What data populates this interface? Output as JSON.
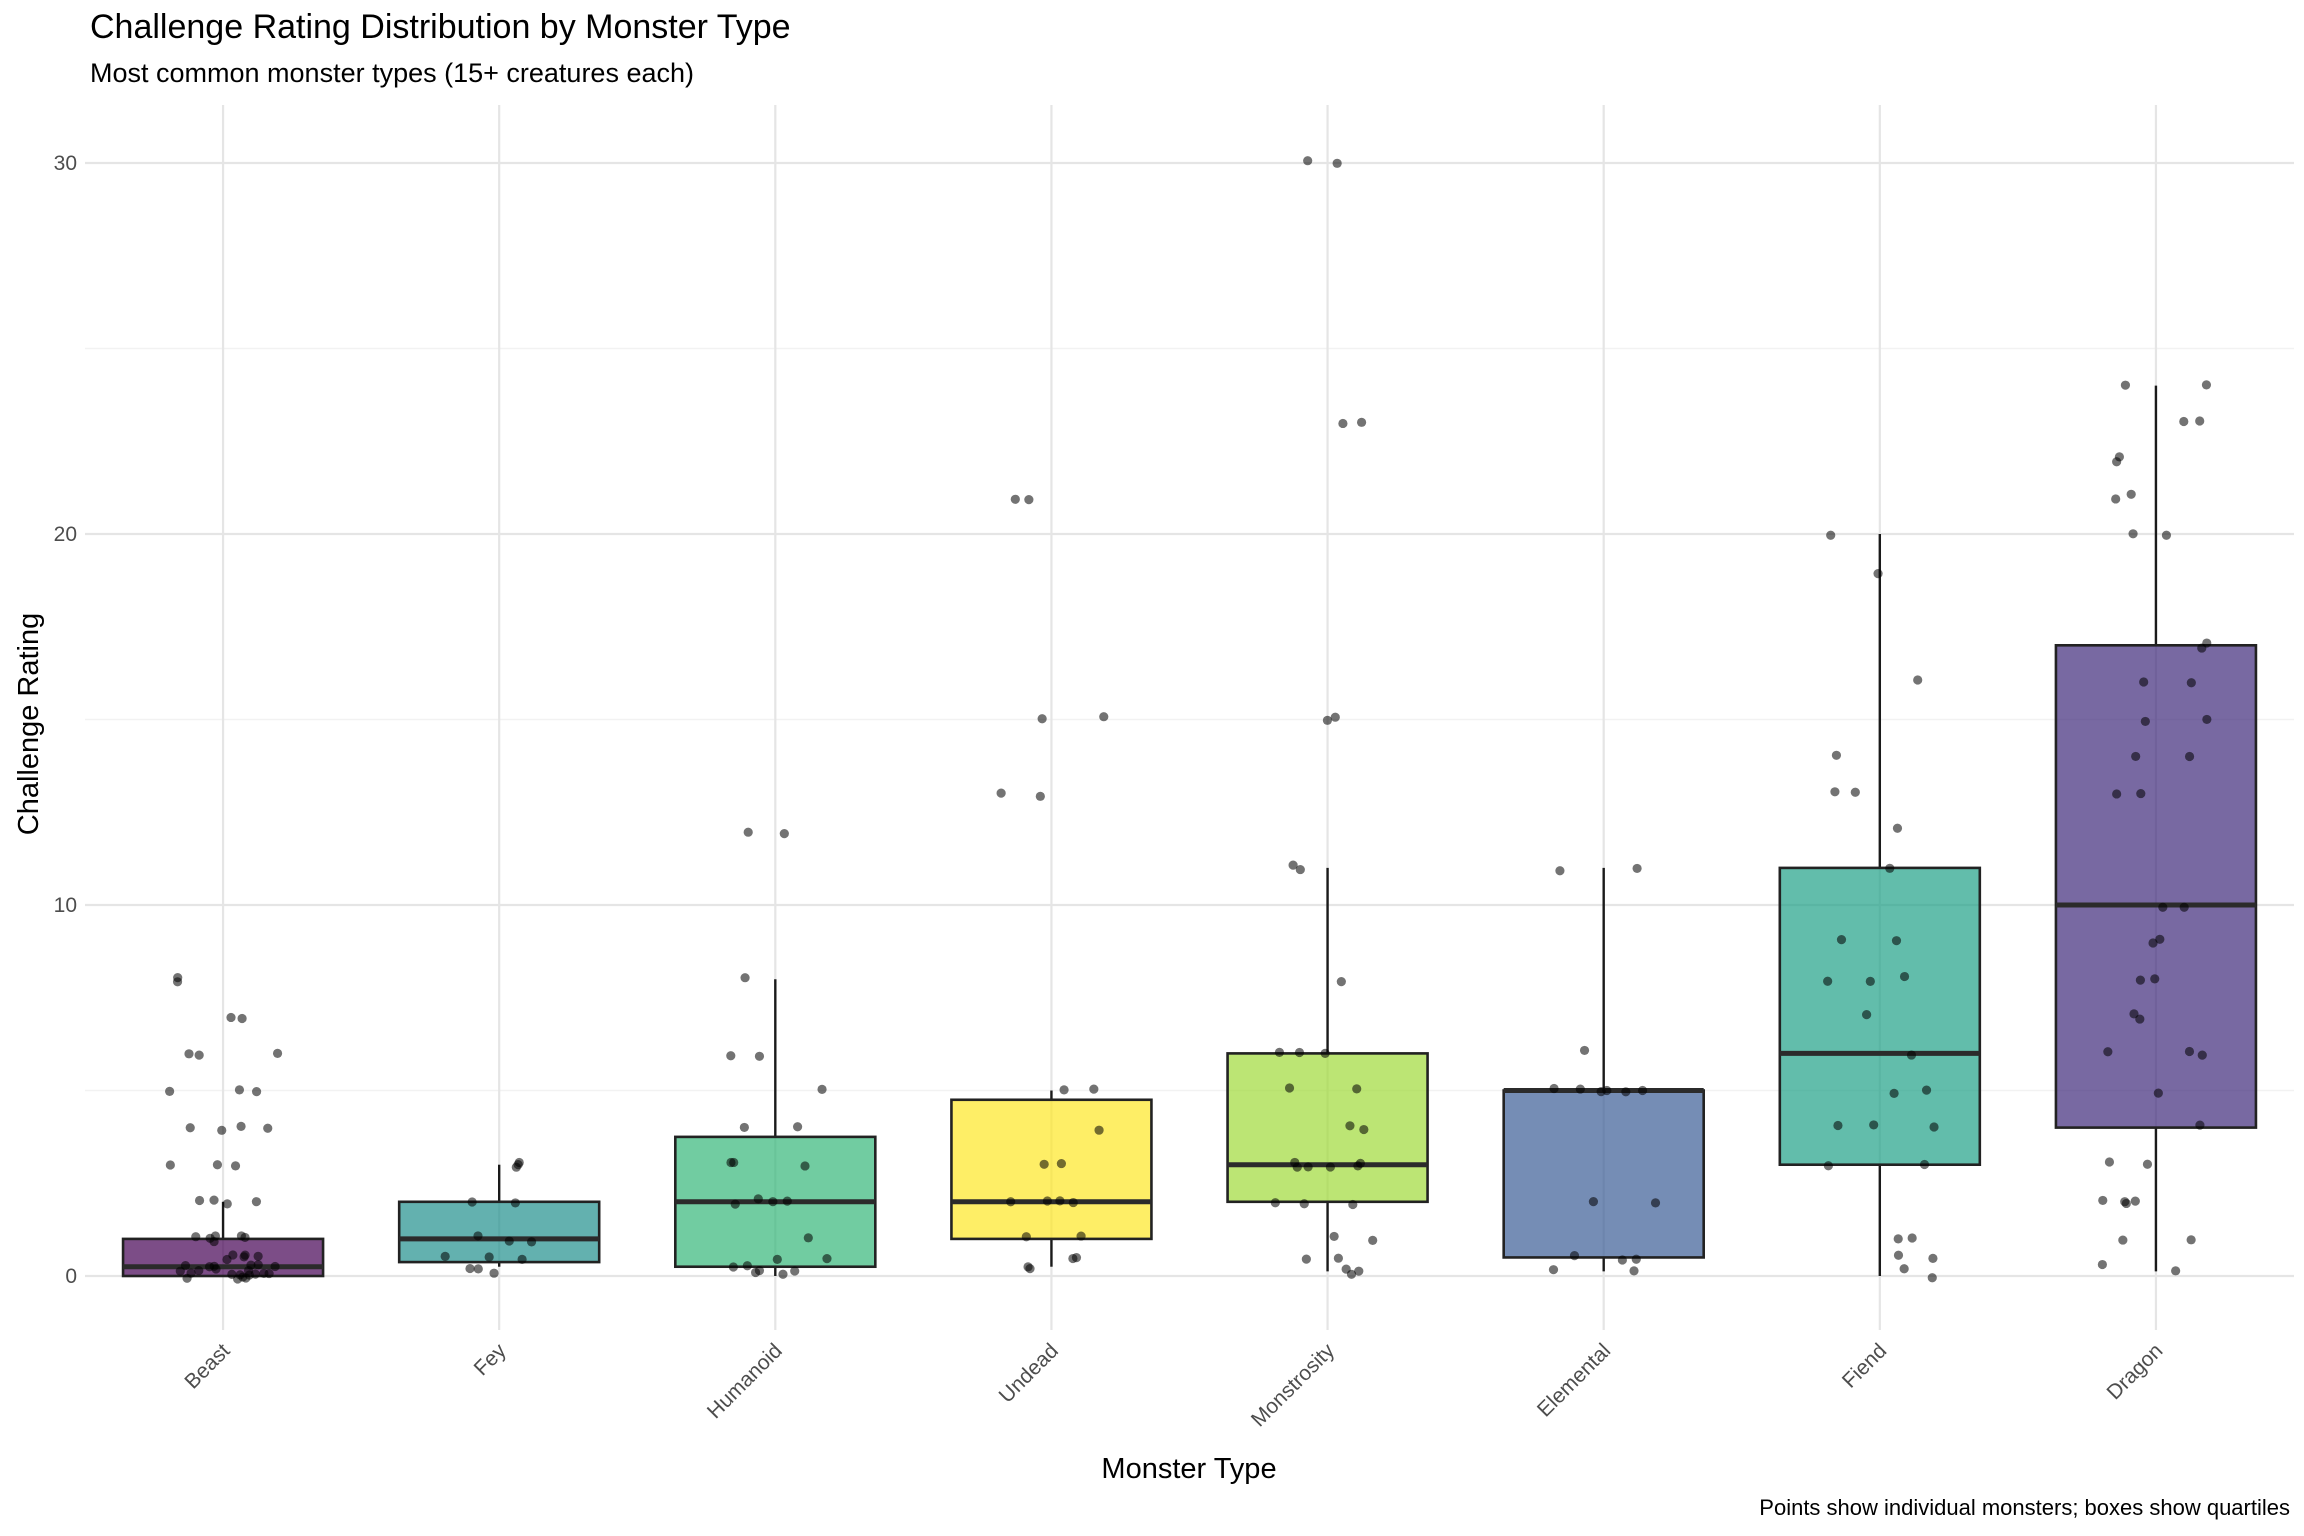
{
  "title": "Challenge Rating Distribution by Monster Type",
  "subtitle": "Most common monster types (15+ creatures each)",
  "caption": "Points show individual monsters; boxes show quartiles",
  "chart_data": {
    "type": "box",
    "xlabel": "Monster Type",
    "ylabel": "Challenge Rating",
    "ylim": [
      -1.5,
      31.5
    ],
    "yticks": [
      0,
      10,
      20,
      30
    ],
    "grid": true,
    "categories": [
      "Beast",
      "Fey",
      "Humanoid",
      "Undead",
      "Monstrosity",
      "Elemental",
      "Fiend",
      "Dragon"
    ],
    "colors": [
      "#440154",
      "#21908d",
      "#35b779",
      "#fde725",
      "#a0da39",
      "#3b5d95",
      "#1fa187",
      "#3e2a7a"
    ],
    "boxes": [
      {
        "name": "Beast",
        "min": 0,
        "q1": 0,
        "median": 0.25,
        "q3": 1,
        "max": 2,
        "points": [
          0,
          0,
          0,
          0,
          0,
          0,
          0,
          0,
          0.125,
          0.125,
          0.125,
          0.125,
          0.125,
          0.125,
          0.25,
          0.25,
          0.25,
          0.25,
          0.25,
          0.25,
          0.25,
          0.5,
          0.5,
          0.5,
          0.5,
          0.5,
          1,
          1,
          1,
          1,
          1,
          1,
          2,
          2,
          2,
          2,
          3,
          3,
          3,
          4,
          4,
          4,
          4,
          5,
          5,
          5,
          6,
          6,
          6,
          7,
          7,
          8,
          8
        ]
      },
      {
        "name": "Fey",
        "min": 0.25,
        "q1": 0.375,
        "median": 1,
        "q3": 2,
        "max": 3,
        "points": [
          0.125,
          0.25,
          0.25,
          0.5,
          0.5,
          0.5,
          1,
          1,
          1,
          2,
          2,
          3,
          3,
          3
        ]
      },
      {
        "name": "Humanoid",
        "min": 0,
        "q1": 0.25,
        "median": 2,
        "q3": 3.75,
        "max": 8,
        "points": [
          0,
          0.125,
          0.125,
          0.125,
          0.25,
          0.25,
          0.5,
          0.5,
          1,
          2,
          2,
          2,
          2,
          3,
          3,
          3,
          4,
          4,
          5,
          6,
          6,
          8,
          12,
          12
        ]
      },
      {
        "name": "Undead",
        "min": 0.25,
        "q1": 1,
        "median": 2,
        "q3": 4.75,
        "max": 5,
        "points": [
          0.25,
          0.25,
          0.5,
          0.5,
          1,
          1,
          2,
          2,
          2,
          2,
          3,
          3,
          4,
          5,
          5,
          13,
          13,
          15,
          15,
          21,
          21
        ]
      },
      {
        "name": "Monstrosity",
        "min": 0.125,
        "q1": 2,
        "median": 3,
        "q3": 6,
        "max": 11,
        "points": [
          0.125,
          0.125,
          0.25,
          0.5,
          0.5,
          1,
          1,
          2,
          2,
          2,
          3,
          3,
          3,
          3,
          3,
          3,
          4,
          4,
          5,
          5,
          6,
          6,
          6,
          8,
          11,
          11,
          15,
          15,
          23,
          23,
          30,
          30
        ]
      },
      {
        "name": "Elemental",
        "min": 0.125,
        "q1": 0.5,
        "median": 5,
        "q3": 5,
        "max": 11,
        "points": [
          0.125,
          0.25,
          0.5,
          0.5,
          0.5,
          2,
          2,
          5,
          5,
          5,
          5,
          5,
          5,
          6,
          11,
          11
        ]
      },
      {
        "name": "Fiend",
        "min": 0,
        "q1": 3,
        "median": 6,
        "q3": 11,
        "max": 20,
        "points": [
          0,
          0.25,
          0.5,
          0.5,
          1,
          1,
          3,
          3,
          4,
          4,
          4,
          5,
          5,
          6,
          7,
          8,
          8,
          8,
          9,
          9,
          11,
          12,
          13,
          13,
          14,
          16,
          19,
          20
        ]
      },
      {
        "name": "Dragon",
        "min": 0.125,
        "q1": 4,
        "median": 10,
        "q3": 17,
        "max": 24,
        "points": [
          0.125,
          0.25,
          1,
          1,
          2,
          2,
          2,
          2,
          3,
          3,
          4,
          5,
          6,
          6,
          6,
          7,
          7,
          8,
          8,
          9,
          9,
          10,
          10,
          13,
          13,
          14,
          14,
          15,
          15,
          16,
          16,
          17,
          17,
          20,
          20,
          21,
          21,
          22,
          22,
          23,
          23,
          24,
          24
        ]
      }
    ]
  }
}
